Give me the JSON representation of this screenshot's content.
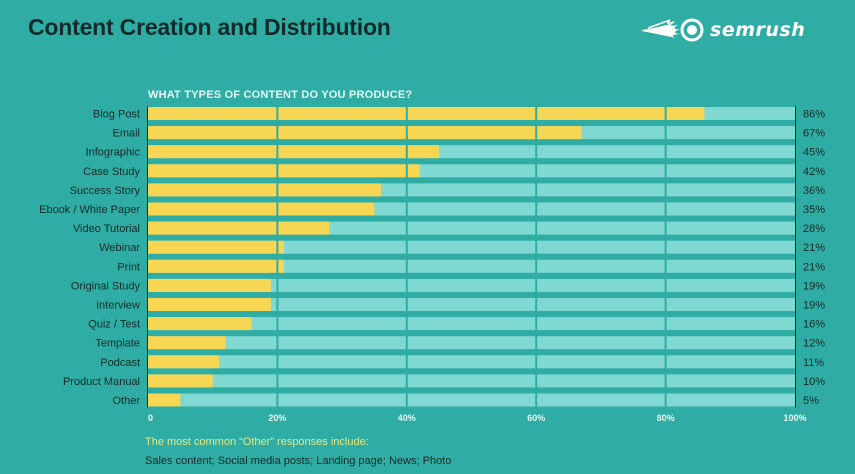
{
  "header": {
    "title": "Content Creation and Distribution",
    "brand": "semrush",
    "brand_icon": "semrush-comet-logo-icon"
  },
  "colors": {
    "background": "#2fada4",
    "bar_fill": "#f7d654",
    "bar_track": "#80d8d2",
    "gridline": "#2fada4",
    "label_text": "#0f2a2a",
    "tick_text": "#e6fbf9",
    "footnote_title": "#e8e882"
  },
  "chart_data": {
    "type": "bar",
    "orientation": "horizontal",
    "title": "WHAT TYPES OF CONTENT DO YOU PRODUCE?",
    "xlabel": "",
    "ylabel": "",
    "xlim": [
      0,
      100
    ],
    "x_ticks": [
      "0",
      "20%",
      "40%",
      "60%",
      "80%",
      "100%"
    ],
    "grid": true,
    "categories": [
      "Blog Post",
      "Email",
      "Infographic",
      "Case Study",
      "Success Story",
      "Ebook / White Paper",
      "Video Tutorial",
      "Webinar",
      "Print",
      "Original Study",
      "Interview",
      "Quiz / Test",
      "Template",
      "Podcast",
      "Product Manual",
      "Other"
    ],
    "values": [
      86,
      67,
      45,
      42,
      36,
      35,
      28,
      21,
      21,
      19,
      19,
      16,
      12,
      11,
      10,
      5
    ],
    "value_labels": [
      "86%",
      "67%",
      "45%",
      "42%",
      "36%",
      "35%",
      "28%",
      "21%",
      "21%",
      "19%",
      "19%",
      "16%",
      "12%",
      "11%",
      "10%",
      "5%"
    ]
  },
  "footnote": {
    "title": "The most common “Other” responses include:",
    "body": "Sales content; Social media posts; Landing page; News; Photo"
  }
}
